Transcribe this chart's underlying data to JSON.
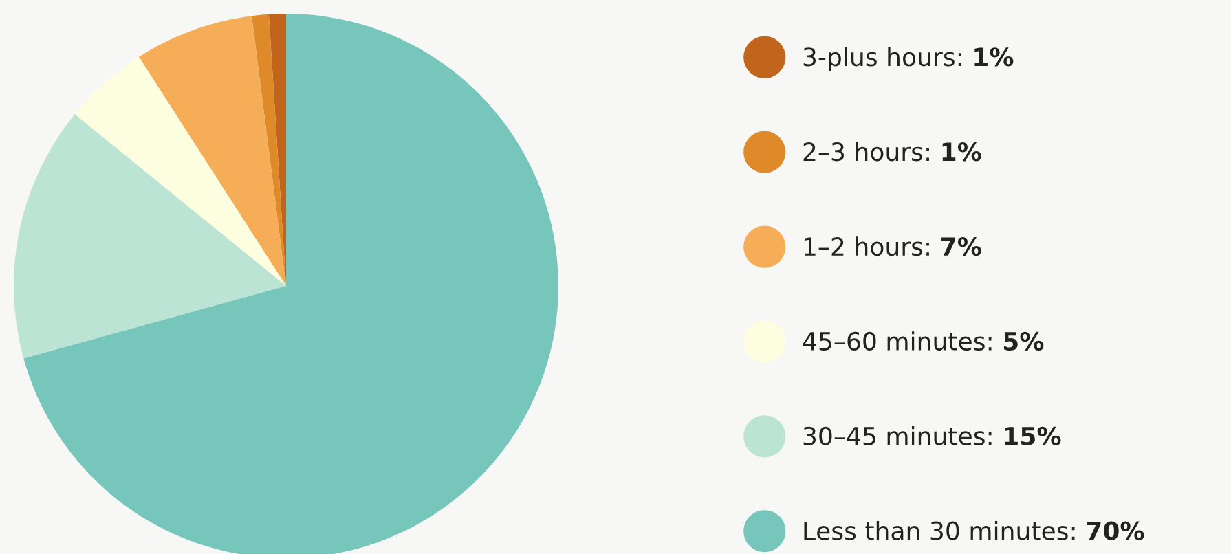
{
  "chart_data": {
    "type": "pie",
    "categories": [
      "3-plus hours",
      "2–3 hours",
      "1–2 hours",
      "45–60 minutes",
      "30–45 minutes",
      "Less than 30 minutes"
    ],
    "values": [
      1,
      1,
      7,
      5,
      15,
      70
    ],
    "value_labels": [
      "1%",
      "1%",
      "7%",
      "5%",
      "15%",
      "70%"
    ],
    "colors": [
      "#c0651b",
      "#de8a2a",
      "#f5ad57",
      "#fdfde0",
      "#bce4d4",
      "#76c6bc"
    ],
    "legend": "right"
  }
}
